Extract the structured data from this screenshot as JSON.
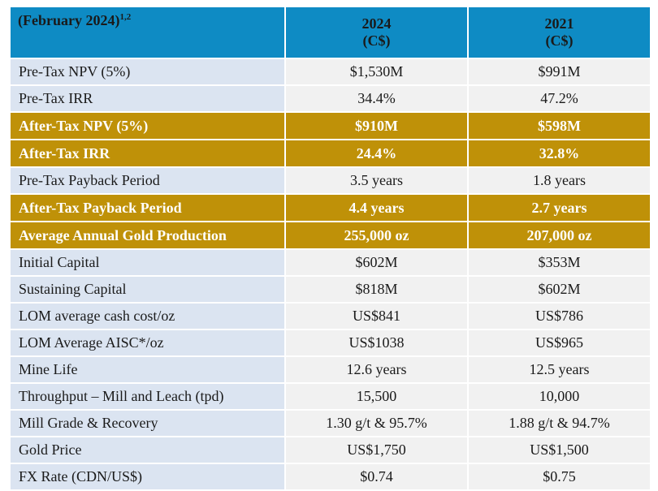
{
  "header": {
    "label": "(February 2024)",
    "label_sup": "1,2",
    "col1_year": "2024",
    "col1_unit": "(C$)",
    "col2_year": "2021",
    "col2_unit": "(C$)"
  },
  "rows": [
    {
      "label": "Pre-Tax NPV (5%)",
      "v2024": "$1,530M",
      "v2021": "$991M",
      "highlight": false
    },
    {
      "label": "Pre-Tax IRR",
      "v2024": "34.4%",
      "v2021": "47.2%",
      "highlight": false
    },
    {
      "label": "After-Tax NPV (5%)",
      "v2024": "$910M",
      "v2021": "$598M",
      "highlight": true
    },
    {
      "label": "After-Tax IRR",
      "v2024": "24.4%",
      "v2021": "32.8%",
      "highlight": true
    },
    {
      "label": "Pre-Tax Payback Period",
      "v2024": "3.5 years",
      "v2021": "1.8 years",
      "highlight": false
    },
    {
      "label": "After-Tax Payback Period",
      "v2024": "4.4 years",
      "v2021": "2.7 years",
      "highlight": true
    },
    {
      "label": "Average Annual Gold Production",
      "v2024": "255,000 oz",
      "v2021": "207,000 oz",
      "highlight": true
    },
    {
      "label": "Initial Capital",
      "v2024": "$602M",
      "v2021": "$353M",
      "highlight": false
    },
    {
      "label": "Sustaining Capital",
      "v2024": "$818M",
      "v2021": "$602M",
      "highlight": false
    },
    {
      "label": "LOM average cash cost/oz",
      "v2024": "US$841",
      "v2021": "US$786",
      "highlight": false
    },
    {
      "label": "LOM Average AISC*/oz",
      "v2024": "US$1038",
      "v2021": "US$965",
      "highlight": false
    },
    {
      "label": "Mine Life",
      "v2024": "12.6 years",
      "v2021": "12.5 years",
      "highlight": false
    },
    {
      "label": "Throughput – Mill and Leach (tpd)",
      "v2024": "15,500",
      "v2021": "10,000",
      "highlight": false
    },
    {
      "label": "Mill Grade & Recovery",
      "v2024": "1.30 g/t & 95.7%",
      "v2021": "1.88 g/t & 94.7%",
      "highlight": false
    },
    {
      "label": "Gold Price",
      "v2024": "US$1,750",
      "v2021": "US$1,500",
      "highlight": false
    },
    {
      "label": "FX Rate (CDN/US$)",
      "v2024": "$0.74",
      "v2021": "$0.75",
      "highlight": false
    }
  ],
  "colors": {
    "header_blue": "#0e8bc4",
    "highlight_gold": "#bf9108",
    "label_cell": "#dbe4f1",
    "value_cell": "#f1f1f1"
  }
}
